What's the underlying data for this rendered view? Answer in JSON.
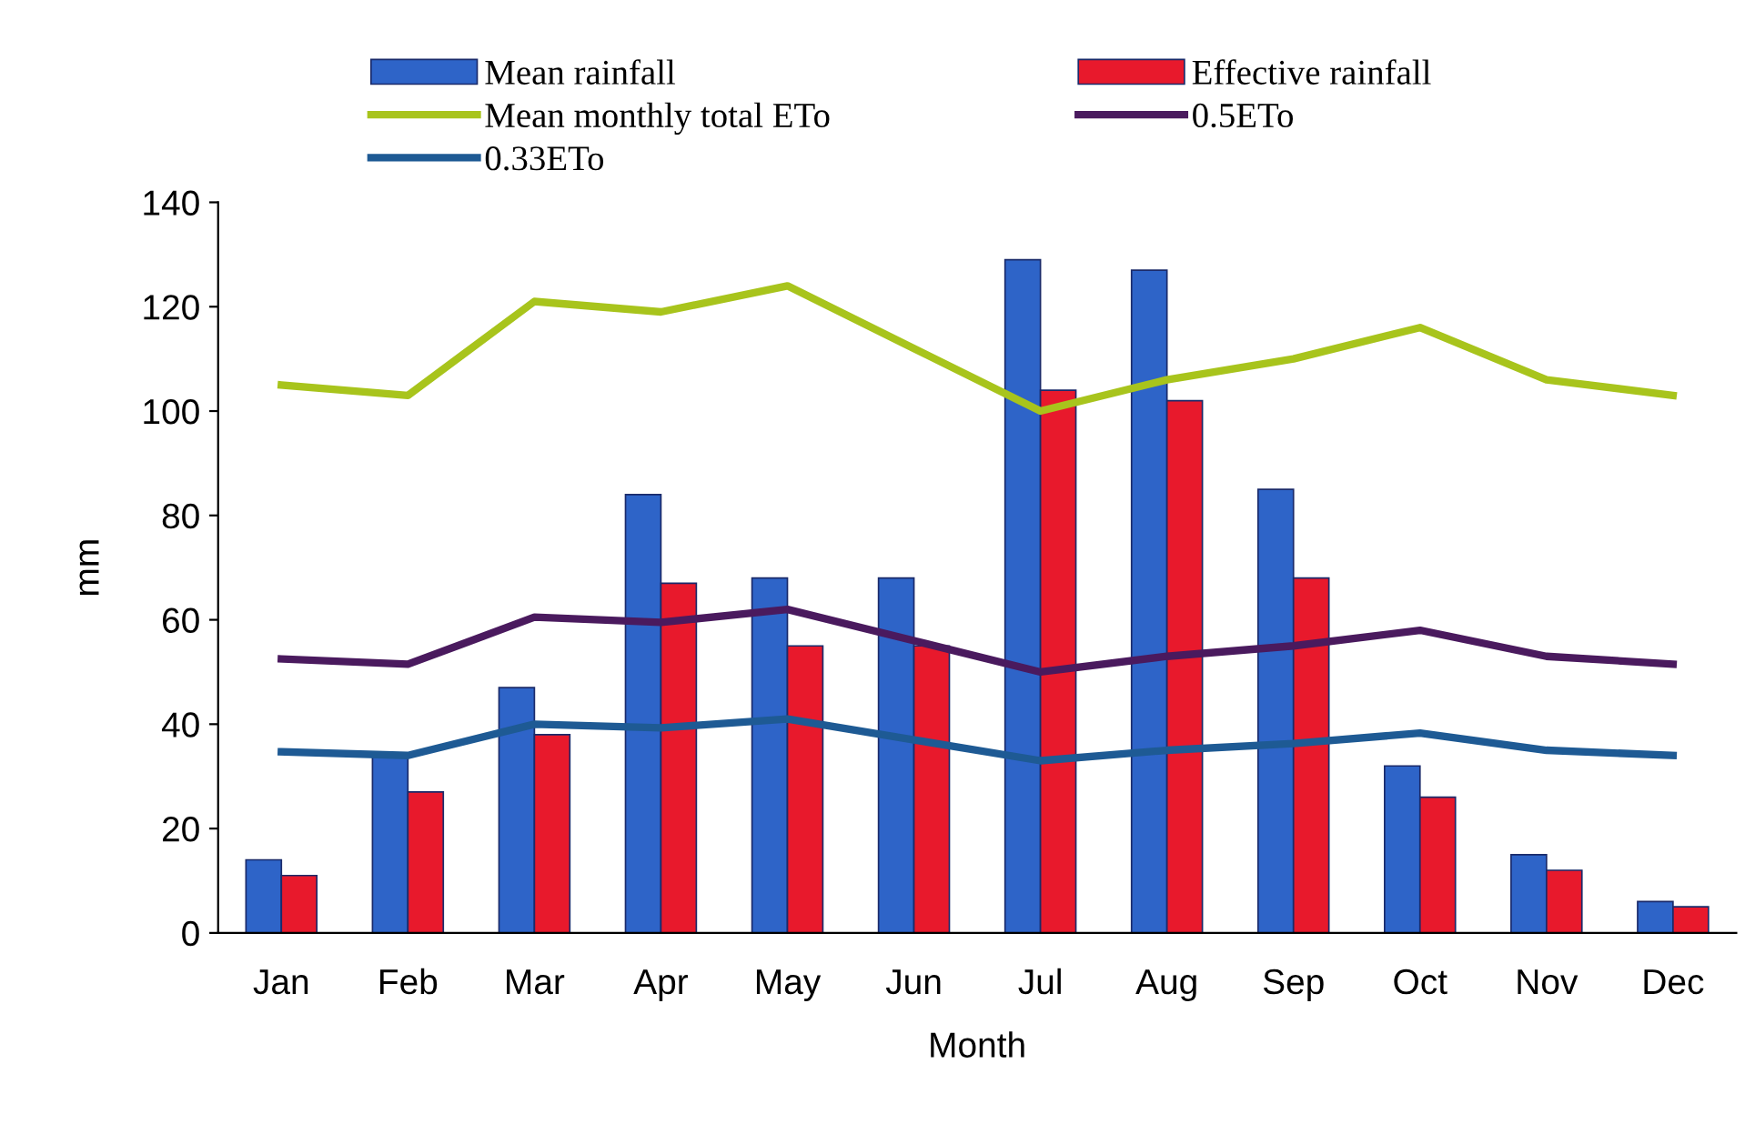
{
  "chart_data": {
    "type": "bar",
    "xlabel": "Month",
    "ylabel": "mm",
    "categories": [
      "Jan",
      "Feb",
      "Mar",
      "Apr",
      "May",
      "Jun",
      "Jul",
      "Aug",
      "Sep",
      "Oct",
      "Nov",
      "Dec"
    ],
    "series": [
      {
        "name": "Mean rainfall",
        "color": "#2e64c8",
        "values": [
          14,
          34,
          47,
          84,
          68,
          68,
          129,
          127,
          85,
          32,
          15,
          6
        ]
      },
      {
        "name": "Effective rainfall",
        "color": "#e8192c",
        "values": [
          11,
          27,
          38,
          67,
          55,
          55,
          104,
          102,
          68,
          26,
          12,
          5
        ]
      },
      {
        "name": "Mean monthly total ETo",
        "type": "line",
        "color": "#a8c41c",
        "values": [
          105,
          103,
          121,
          119,
          124,
          112,
          100,
          106,
          110,
          116,
          106,
          103
        ]
      },
      {
        "name": "0.5ETo",
        "type": "line",
        "color": "#4a1a5e",
        "values": [
          52.5,
          51.5,
          60.5,
          59.5,
          62,
          56,
          50,
          53,
          55,
          58,
          53,
          51.5
        ]
      },
      {
        "name": "0.33ETo",
        "type": "line",
        "color": "#1e5a94",
        "values": [
          34.7,
          34,
          40,
          39.3,
          41,
          37,
          33,
          35,
          36.3,
          38.3,
          35,
          34
        ]
      }
    ],
    "ylim": [
      0,
      140
    ],
    "yticks": [
      0,
      20,
      40,
      60,
      80,
      100,
      120,
      140
    ],
    "grid": false,
    "legend": "top",
    "marker": "none",
    "line_style": "solid"
  }
}
